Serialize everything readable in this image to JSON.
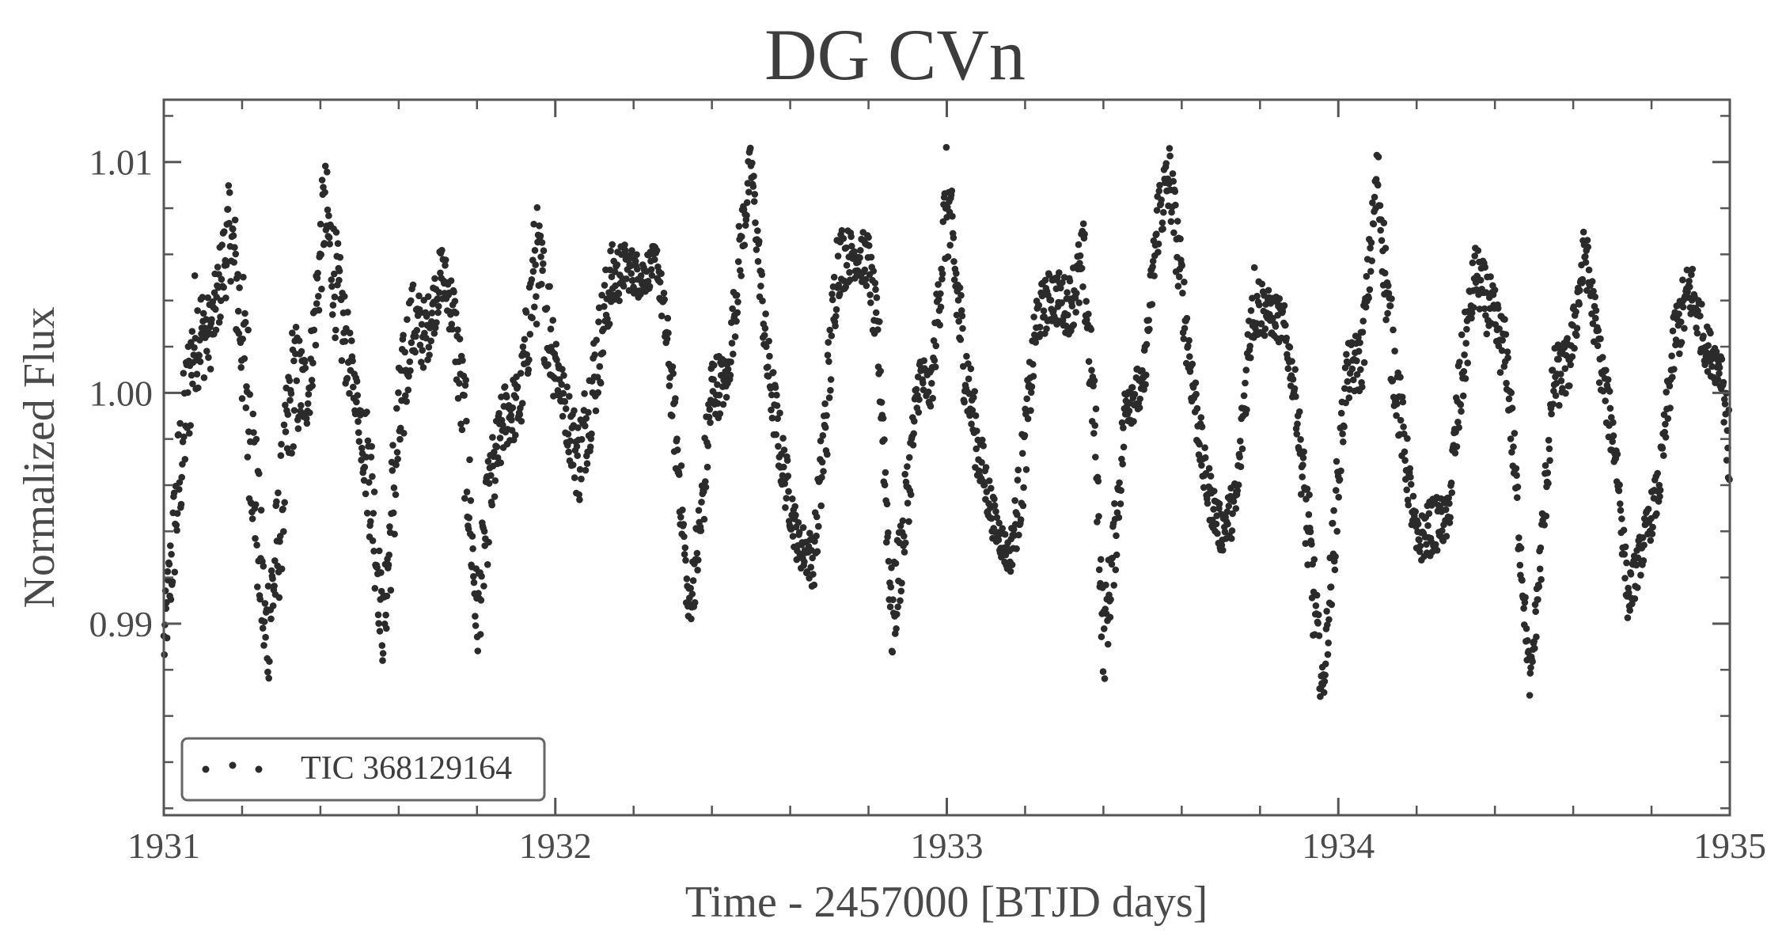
{
  "chart_data": {
    "type": "scatter",
    "title": "DG CVn",
    "xlabel": "Time - 2457000 [BTJD days]",
    "ylabel": "Normalized Flux",
    "xlim": [
      1931,
      1935
    ],
    "ylim": [
      0.9817,
      1.0127
    ],
    "x_ticks": [
      1931,
      1932,
      1933,
      1934,
      1935
    ],
    "x_tick_labels": [
      "1931",
      "1932",
      "1933",
      "1934",
      "1935"
    ],
    "y_ticks": [
      0.99,
      1.0,
      1.01
    ],
    "y_tick_labels": [
      "0.99",
      "1.00",
      "1.01"
    ],
    "x_minor_step": 0.2,
    "y_minor_step": 0.002,
    "grid": false,
    "legend_position": "bottom-left",
    "marker_color": "#2b2b2b",
    "series": [
      {
        "name": "TIC 368129164",
        "cadence_days": 0.00139,
        "envelope": [
          [
            1931.0,
            0.9875,
            0.9905
          ],
          [
            1931.04,
            0.9935,
            0.9995
          ],
          [
            1931.08,
            1.0,
            1.0055
          ],
          [
            1931.12,
            1.001,
            1.004
          ],
          [
            1931.17,
            1.005,
            1.0095
          ],
          [
            1931.22,
            0.995,
            1.003
          ],
          [
            1931.26,
            0.9865,
            0.992
          ],
          [
            1931.29,
            0.99,
            0.996
          ],
          [
            1931.33,
            0.9975,
            1.0035
          ],
          [
            1931.37,
            0.9985,
            1.0015
          ],
          [
            1931.41,
            1.0055,
            1.0105
          ],
          [
            1931.45,
            1.001,
            1.006
          ],
          [
            1931.49,
            0.999,
            1.001
          ],
          [
            1931.53,
            0.993,
            0.999
          ],
          [
            1931.56,
            0.988,
            0.991
          ],
          [
            1931.59,
            0.993,
            1.0
          ],
          [
            1931.63,
            1.001,
            1.005
          ],
          [
            1931.67,
            1.001,
            1.004
          ],
          [
            1931.71,
            1.004,
            1.0065
          ],
          [
            1931.74,
            1.002,
            1.005
          ],
          [
            1931.77,
            0.995,
            1.001
          ],
          [
            1931.8,
            0.988,
            0.992
          ],
          [
            1931.83,
            0.993,
            0.9975
          ],
          [
            1931.87,
            0.9975,
            1.0005
          ],
          [
            1931.91,
            0.998,
            1.001
          ],
          [
            1931.95,
            1.003,
            1.0085
          ],
          [
            1931.99,
            1.0,
            1.005
          ],
          [
            1932.02,
            0.9985,
            1.001
          ],
          [
            1932.06,
            0.995,
            0.999
          ],
          [
            1932.1,
            0.9985,
            1.003
          ],
          [
            1932.14,
            1.003,
            1.0065
          ],
          [
            1932.18,
            1.0045,
            1.0065
          ],
          [
            1932.22,
            1.004,
            1.006
          ],
          [
            1932.26,
            1.005,
            1.0065
          ],
          [
            1932.29,
            1.0,
            1.003
          ],
          [
            1932.32,
            0.994,
            0.9975
          ],
          [
            1932.34,
            0.9895,
            0.9915
          ],
          [
            1932.37,
            0.992,
            0.996
          ],
          [
            1932.4,
            0.9985,
            1.002
          ],
          [
            1932.44,
            0.9995,
            1.0015
          ],
          [
            1932.47,
            1.004,
            1.0075
          ],
          [
            1932.5,
            1.009,
            1.011
          ],
          [
            1932.54,
            1.0,
            1.003
          ],
          [
            1932.58,
            0.9955,
            0.9985
          ],
          [
            1932.62,
            0.9925,
            0.9945
          ],
          [
            1932.66,
            0.9915,
            0.994
          ],
          [
            1932.69,
            0.996,
            1.001
          ],
          [
            1932.72,
            1.004,
            1.0075
          ],
          [
            1932.76,
            1.005,
            1.007
          ],
          [
            1932.8,
            1.0045,
            1.007
          ],
          [
            1932.83,
            0.999,
            1.003
          ],
          [
            1932.86,
            0.988,
            0.992
          ],
          [
            1932.89,
            0.992,
            0.996
          ],
          [
            1932.93,
            0.9995,
            1.002
          ],
          [
            1932.96,
            0.999,
            1.001
          ],
          [
            1933.0,
            1.006,
            1.011
          ],
          [
            1933.04,
            1.0,
            1.004
          ],
          [
            1933.08,
            0.996,
            0.999
          ],
          [
            1933.12,
            0.9935,
            0.9955
          ],
          [
            1933.16,
            0.992,
            0.9935
          ],
          [
            1933.19,
            0.994,
            0.998
          ],
          [
            1933.23,
            1.002,
            1.0045
          ],
          [
            1933.27,
            1.003,
            1.0055
          ],
          [
            1933.31,
            1.0025,
            1.005
          ],
          [
            1933.35,
            1.0035,
            1.0075
          ],
          [
            1933.38,
            0.996,
            1.0
          ],
          [
            1933.4,
            0.987,
            0.991
          ],
          [
            1933.43,
            0.992,
            0.9955
          ],
          [
            1933.46,
            0.9985,
            1.0015
          ],
          [
            1933.5,
            0.999,
            1.001
          ],
          [
            1933.54,
            1.006,
            1.0095
          ],
          [
            1933.57,
            1.0075,
            1.011
          ],
          [
            1933.62,
            1.0,
            1.003
          ],
          [
            1933.66,
            0.995,
            0.9975
          ],
          [
            1933.7,
            0.993,
            0.995
          ],
          [
            1933.74,
            0.994,
            0.9965
          ],
          [
            1933.78,
            1.002,
            1.006
          ],
          [
            1933.82,
            1.0025,
            1.0045
          ],
          [
            1933.86,
            1.002,
            1.004
          ],
          [
            1933.89,
            0.999,
            1.001
          ],
          [
            1933.93,
            0.99,
            0.995
          ],
          [
            1933.96,
            0.986,
            0.988
          ],
          [
            1933.99,
            0.992,
            0.996
          ],
          [
            1934.02,
            0.9995,
            1.002
          ],
          [
            1934.06,
            1.0,
            1.003
          ],
          [
            1934.1,
            1.008,
            1.011
          ],
          [
            1934.13,
            1.001,
            1.005
          ],
          [
            1934.17,
            0.996,
            0.999
          ],
          [
            1934.2,
            0.9925,
            0.9945
          ],
          [
            1934.24,
            0.993,
            0.9955
          ],
          [
            1934.28,
            0.9935,
            0.9955
          ],
          [
            1934.31,
            0.998,
            1.002
          ],
          [
            1934.35,
            1.004,
            1.0065
          ],
          [
            1934.39,
            1.002,
            1.005
          ],
          [
            1934.43,
            1.0,
            1.003
          ],
          [
            1934.46,
            0.993,
            0.996
          ],
          [
            1934.49,
            0.9865,
            0.988
          ],
          [
            1934.52,
            0.992,
            0.995
          ],
          [
            1934.55,
            0.999,
            1.002
          ],
          [
            1934.59,
            1.0,
            1.0025
          ],
          [
            1934.63,
            1.005,
            1.0075
          ],
          [
            1934.67,
            1.0,
            1.0025
          ],
          [
            1934.71,
            0.996,
            0.9985
          ],
          [
            1934.74,
            0.99,
            0.992
          ],
          [
            1934.78,
            0.9925,
            0.9945
          ],
          [
            1934.82,
            0.995,
            0.997
          ],
          [
            1934.86,
            1.001,
            1.004
          ],
          [
            1934.9,
            1.003,
            1.006
          ],
          [
            1934.94,
            1.001,
            1.003
          ],
          [
            1934.98,
            1.0,
            1.002
          ],
          [
            1935.0,
            0.995,
            0.999
          ]
        ]
      }
    ]
  }
}
